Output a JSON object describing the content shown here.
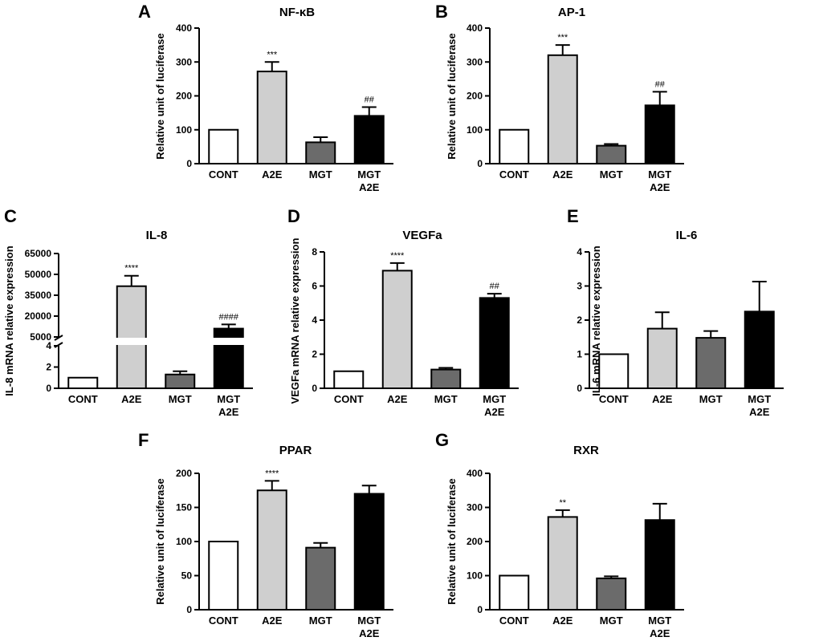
{
  "colors": {
    "CONT": "#ffffff",
    "A2E": "#cfcfcf",
    "MGT": "#6b6b6b",
    "MGT A2E": "#000000"
  },
  "chart_data": [
    {
      "letter": "A",
      "type": "bar",
      "title": "NF-κB",
      "ylabel": "Relative unit of luciferase",
      "categories": [
        "CONT",
        "A2E",
        "MGT",
        "MGT\nA2E"
      ],
      "values": [
        100,
        272,
        63,
        141
      ],
      "errors": [
        0,
        28,
        15,
        26
      ],
      "significance": [
        "",
        "***",
        "",
        "##"
      ],
      "ylim": [
        0,
        400
      ],
      "yticks": [
        0,
        100,
        200,
        300,
        400
      ]
    },
    {
      "letter": "B",
      "type": "bar",
      "title": "AP-1",
      "ylabel": "Relative unit of luciferase",
      "categories": [
        "CONT",
        "A2E",
        "MGT",
        "MGT\nA2E"
      ],
      "values": [
        100,
        320,
        53,
        172
      ],
      "errors": [
        0,
        30,
        5,
        40
      ],
      "significance": [
        "",
        "***",
        "",
        "##"
      ],
      "ylim": [
        0,
        400
      ],
      "yticks": [
        0,
        100,
        200,
        300,
        400
      ]
    },
    {
      "letter": "C",
      "type": "bar",
      "title": "IL-8",
      "ylabel": "IL-8 mRNA relative expression",
      "categories": [
        "CONT",
        "A2E",
        "MGT",
        "MGT\nA2E"
      ],
      "values": [
        1,
        41500,
        1.3,
        11000
      ],
      "errors": [
        0,
        7500,
        0.3,
        3000
      ],
      "significance": [
        "",
        "****",
        "",
        "####"
      ],
      "broken_axis": {
        "lower": {
          "range": [
            0,
            4
          ],
          "ticks": [
            0,
            2,
            4
          ]
        },
        "upper": {
          "range": [
            5000,
            65000
          ],
          "ticks": [
            5000,
            20000,
            35000,
            50000,
            65000
          ]
        }
      }
    },
    {
      "letter": "D",
      "type": "bar",
      "title": "VEGFa",
      "ylabel": "VEGFa mRNA relative expression",
      "categories": [
        "CONT",
        "A2E",
        "MGT",
        "MGT\nA2E"
      ],
      "values": [
        1,
        6.9,
        1.1,
        5.3
      ],
      "errors": [
        0,
        0.45,
        0.1,
        0.25
      ],
      "significance": [
        "",
        "****",
        "",
        "##"
      ],
      "ylim": [
        0,
        8
      ],
      "yticks": [
        0,
        2,
        4,
        6,
        8
      ]
    },
    {
      "letter": "E",
      "type": "bar",
      "title": "IL-6",
      "ylabel": "IL-6 mRNA relative expression",
      "categories": [
        "CONT",
        "A2E",
        "MGT",
        "MGT\nA2E"
      ],
      "values": [
        1,
        1.75,
        1.48,
        2.25
      ],
      "errors": [
        0,
        0.48,
        0.2,
        0.88
      ],
      "significance": [
        "",
        "",
        "",
        ""
      ],
      "ylim": [
        0,
        4
      ],
      "yticks": [
        0,
        1,
        2,
        3,
        4
      ]
    },
    {
      "letter": "F",
      "type": "bar",
      "title": "PPAR",
      "ylabel": "Relative unit of luciferase",
      "categories": [
        "CONT",
        "A2E",
        "MGT",
        "MGT\nA2E"
      ],
      "values": [
        100,
        175,
        91,
        170
      ],
      "errors": [
        0,
        14,
        7,
        12
      ],
      "significance": [
        "",
        "****",
        "",
        ""
      ],
      "ylim": [
        0,
        200
      ],
      "yticks": [
        0,
        50,
        100,
        150,
        200
      ]
    },
    {
      "letter": "G",
      "type": "bar",
      "title": "RXR",
      "ylabel": "Relative unit of luciferase",
      "categories": [
        "CONT",
        "A2E",
        "MGT",
        "MGT\nA2E"
      ],
      "values": [
        100,
        272,
        92,
        263
      ],
      "errors": [
        0,
        20,
        6,
        48
      ],
      "significance": [
        "",
        "**",
        "",
        ""
      ],
      "ylim": [
        0,
        400
      ],
      "yticks": [
        0,
        100,
        200,
        300,
        400
      ]
    }
  ]
}
